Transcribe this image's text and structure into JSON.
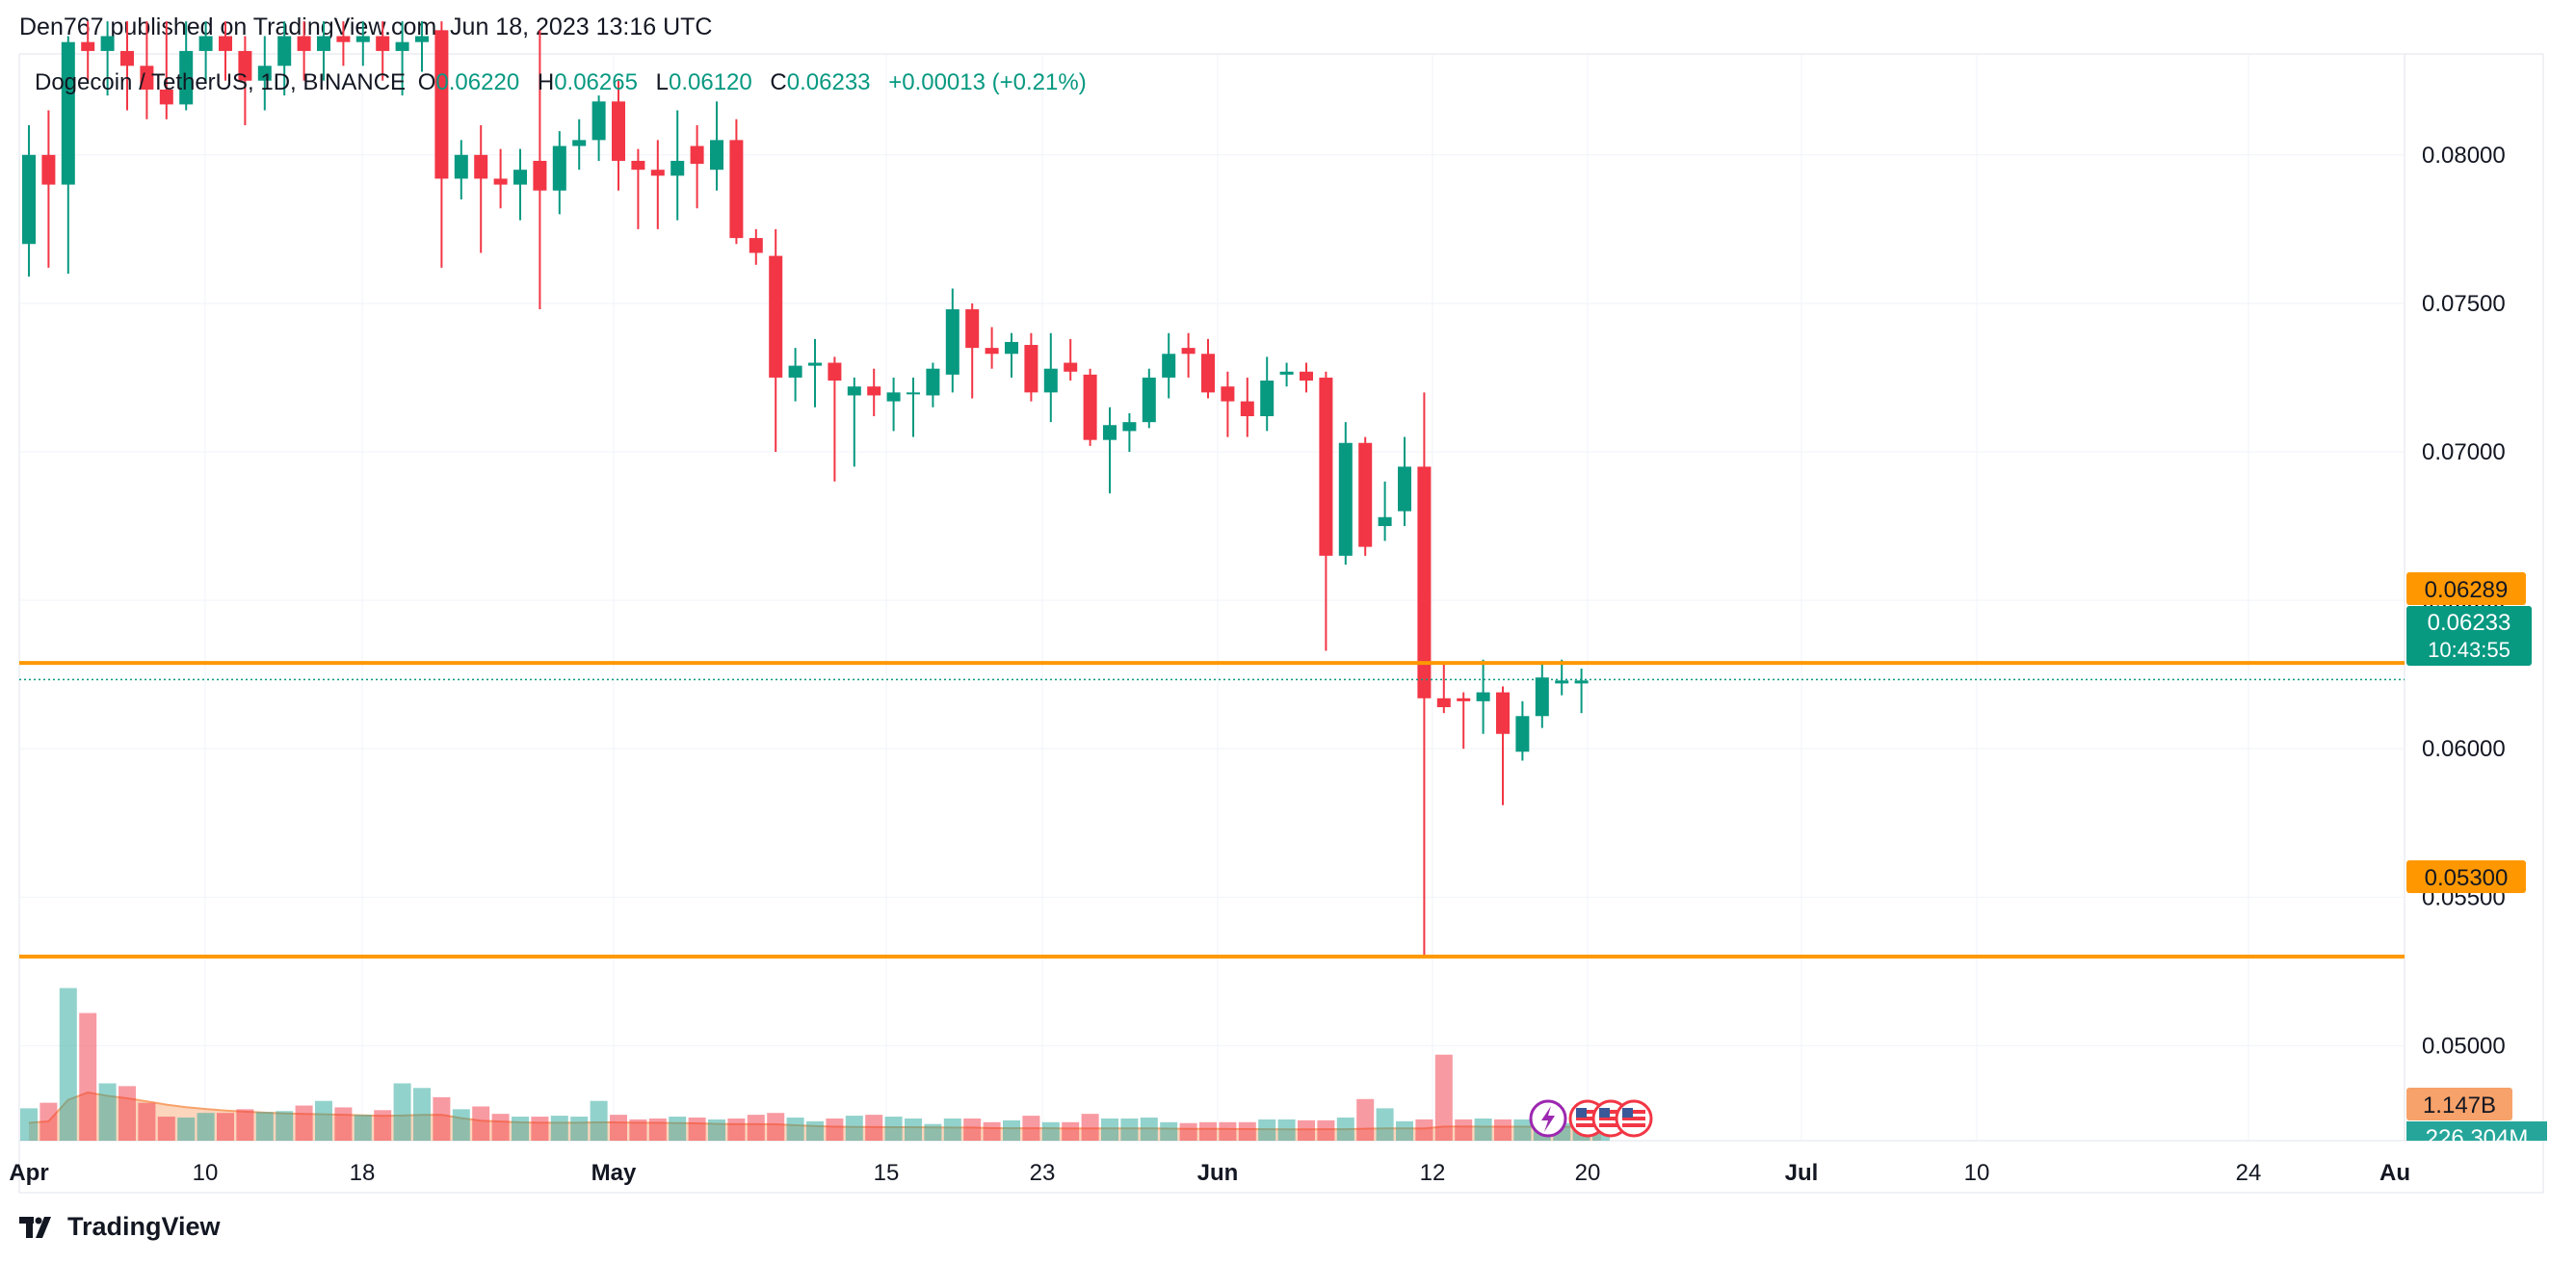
{
  "header": {
    "published": "Den767 published on TradingView.com, Jun 18, 2023 13:16 UTC"
  },
  "footer": {
    "brand": "TradingView"
  },
  "chart_data": {
    "type": "candlestick",
    "symbol_line": {
      "symbol": "Dogecoin / TetherUS, 1D, BINANCE",
      "o_label": "O",
      "o_value": "0.06220",
      "h_label": "H",
      "h_value": "0.06265",
      "l_label": "L",
      "l_value": "0.06120",
      "c_label": "C",
      "c_value": "0.06233",
      "change": "+0.00013 (+0.21%)"
    },
    "price_axis": {
      "ticks": [
        "0.08000",
        "0.07500",
        "0.07000",
        "0.06500",
        "0.06000",
        "0.05500",
        "0.05000"
      ],
      "tick_values": [
        0.08,
        0.075,
        0.07,
        0.065,
        0.06,
        0.055,
        0.05
      ],
      "range": [
        0.0468,
        0.0834
      ]
    },
    "time_axis": {
      "labels": [
        "Apr",
        "10",
        "18",
        "May",
        "15",
        "23",
        "Jun",
        "12",
        "20",
        "Jul",
        "10",
        "24",
        "Au"
      ],
      "bold": [
        "Apr",
        "May",
        "Jun",
        "Jul",
        "Au"
      ]
    },
    "levels": [
      {
        "price": 0.06289,
        "label": "0.06289",
        "color": "#ff9800"
      },
      {
        "price": 0.053,
        "label": "0.05300",
        "color": "#ff9800"
      }
    ],
    "last_price": {
      "price": 0.06233,
      "label": "0.06233",
      "countdown": "10:43:55",
      "color": "#089981"
    },
    "volume_labels": {
      "ma": "1.147B",
      "last": "226.304M",
      "overlay": "1.",
      "ma_color": "#f7a26a",
      "last_color": "#26a69a"
    },
    "up_color": "#089981",
    "down_color": "#f23645",
    "candles": [
      {
        "o": 0.077,
        "h": 0.081,
        "l": 0.0759,
        "c": 0.08
      },
      {
        "o": 0.08,
        "h": 0.0815,
        "l": 0.0762,
        "c": 0.079
      },
      {
        "o": 0.079,
        "h": 0.084,
        "l": 0.076,
        "c": 0.0838
      },
      {
        "o": 0.0838,
        "h": 0.0845,
        "l": 0.0825,
        "c": 0.0835
      },
      {
        "o": 0.0835,
        "h": 0.0845,
        "l": 0.082,
        "c": 0.084
      },
      {
        "o": 0.0835,
        "h": 0.0845,
        "l": 0.0815,
        "c": 0.083
      },
      {
        "o": 0.083,
        "h": 0.0845,
        "l": 0.0812,
        "c": 0.0822
      },
      {
        "o": 0.0822,
        "h": 0.0845,
        "l": 0.0812,
        "c": 0.0817
      },
      {
        "o": 0.0817,
        "h": 0.0845,
        "l": 0.0815,
        "c": 0.0835
      },
      {
        "o": 0.0835,
        "h": 0.0845,
        "l": 0.0825,
        "c": 0.084
      },
      {
        "o": 0.084,
        "h": 0.0845,
        "l": 0.0825,
        "c": 0.0835
      },
      {
        "o": 0.0835,
        "h": 0.084,
        "l": 0.081,
        "c": 0.0825
      },
      {
        "o": 0.0825,
        "h": 0.084,
        "l": 0.0815,
        "c": 0.083
      },
      {
        "o": 0.083,
        "h": 0.0845,
        "l": 0.082,
        "c": 0.084
      },
      {
        "o": 0.084,
        "h": 0.0845,
        "l": 0.0825,
        "c": 0.0835
      },
      {
        "o": 0.0835,
        "h": 0.0845,
        "l": 0.0825,
        "c": 0.084
      },
      {
        "o": 0.084,
        "h": 0.0845,
        "l": 0.083,
        "c": 0.0838
      },
      {
        "o": 0.0838,
        "h": 0.0845,
        "l": 0.083,
        "c": 0.084
      },
      {
        "o": 0.084,
        "h": 0.0845,
        "l": 0.0825,
        "c": 0.0835
      },
      {
        "o": 0.0835,
        "h": 0.0845,
        "l": 0.082,
        "c": 0.0838
      },
      {
        "o": 0.0838,
        "h": 0.0845,
        "l": 0.0828,
        "c": 0.084
      },
      {
        "o": 0.0842,
        "h": 0.0845,
        "l": 0.0762,
        "c": 0.0792
      },
      {
        "o": 0.0792,
        "h": 0.0805,
        "l": 0.0785,
        "c": 0.08
      },
      {
        "o": 0.08,
        "h": 0.081,
        "l": 0.0767,
        "c": 0.0792
      },
      {
        "o": 0.0792,
        "h": 0.0802,
        "l": 0.0782,
        "c": 0.079
      },
      {
        "o": 0.079,
        "h": 0.0802,
        "l": 0.0778,
        "c": 0.0795
      },
      {
        "o": 0.0798,
        "h": 0.0842,
        "l": 0.0748,
        "c": 0.0788
      },
      {
        "o": 0.0788,
        "h": 0.0808,
        "l": 0.078,
        "c": 0.0803
      },
      {
        "o": 0.0803,
        "h": 0.0812,
        "l": 0.0795,
        "c": 0.0805
      },
      {
        "o": 0.0805,
        "h": 0.082,
        "l": 0.0798,
        "c": 0.0818
      },
      {
        "o": 0.0818,
        "h": 0.0825,
        "l": 0.0788,
        "c": 0.0798
      },
      {
        "o": 0.0798,
        "h": 0.0802,
        "l": 0.0775,
        "c": 0.0795
      },
      {
        "o": 0.0795,
        "h": 0.0805,
        "l": 0.0775,
        "c": 0.0793
      },
      {
        "o": 0.0793,
        "h": 0.0815,
        "l": 0.0778,
        "c": 0.0798
      },
      {
        "o": 0.0803,
        "h": 0.081,
        "l": 0.0782,
        "c": 0.0797
      },
      {
        "o": 0.0795,
        "h": 0.0818,
        "l": 0.0788,
        "c": 0.0805
      },
      {
        "o": 0.0805,
        "h": 0.0812,
        "l": 0.077,
        "c": 0.0772
      },
      {
        "o": 0.0772,
        "h": 0.0775,
        "l": 0.0763,
        "c": 0.0767
      },
      {
        "o": 0.0766,
        "h": 0.0775,
        "l": 0.07,
        "c": 0.0725
      },
      {
        "o": 0.0725,
        "h": 0.0735,
        "l": 0.0717,
        "c": 0.0729
      },
      {
        "o": 0.0729,
        "h": 0.0738,
        "l": 0.0715,
        "c": 0.073
      },
      {
        "o": 0.073,
        "h": 0.0732,
        "l": 0.069,
        "c": 0.0724
      },
      {
        "o": 0.0719,
        "h": 0.0725,
        "l": 0.0695,
        "c": 0.0722
      },
      {
        "o": 0.0722,
        "h": 0.0728,
        "l": 0.0712,
        "c": 0.0719
      },
      {
        "o": 0.0717,
        "h": 0.0725,
        "l": 0.0707,
        "c": 0.072
      },
      {
        "o": 0.072,
        "h": 0.0725,
        "l": 0.0705,
        "c": 0.072
      },
      {
        "o": 0.0719,
        "h": 0.073,
        "l": 0.0715,
        "c": 0.0728
      },
      {
        "o": 0.0726,
        "h": 0.0755,
        "l": 0.072,
        "c": 0.0748
      },
      {
        "o": 0.0748,
        "h": 0.075,
        "l": 0.0718,
        "c": 0.0735
      },
      {
        "o": 0.0735,
        "h": 0.0742,
        "l": 0.0728,
        "c": 0.0733
      },
      {
        "o": 0.0733,
        "h": 0.074,
        "l": 0.0725,
        "c": 0.0737
      },
      {
        "o": 0.0736,
        "h": 0.074,
        "l": 0.0717,
        "c": 0.072
      },
      {
        "o": 0.072,
        "h": 0.074,
        "l": 0.071,
        "c": 0.0728
      },
      {
        "o": 0.073,
        "h": 0.0738,
        "l": 0.0724,
        "c": 0.0727
      },
      {
        "o": 0.0726,
        "h": 0.0728,
        "l": 0.0702,
        "c": 0.0704
      },
      {
        "o": 0.0704,
        "h": 0.0715,
        "l": 0.0686,
        "c": 0.0709
      },
      {
        "o": 0.0707,
        "h": 0.0713,
        "l": 0.07,
        "c": 0.071
      },
      {
        "o": 0.071,
        "h": 0.0728,
        "l": 0.0708,
        "c": 0.0725
      },
      {
        "o": 0.0725,
        "h": 0.074,
        "l": 0.0718,
        "c": 0.0733
      },
      {
        "o": 0.0735,
        "h": 0.074,
        "l": 0.0725,
        "c": 0.0733
      },
      {
        "o": 0.0733,
        "h": 0.0738,
        "l": 0.0718,
        "c": 0.072
      },
      {
        "o": 0.0722,
        "h": 0.0727,
        "l": 0.0705,
        "c": 0.0717
      },
      {
        "o": 0.0717,
        "h": 0.0725,
        "l": 0.0705,
        "c": 0.0712
      },
      {
        "o": 0.0712,
        "h": 0.0732,
        "l": 0.0707,
        "c": 0.0724
      },
      {
        "o": 0.0726,
        "h": 0.073,
        "l": 0.0722,
        "c": 0.0727
      },
      {
        "o": 0.0727,
        "h": 0.073,
        "l": 0.072,
        "c": 0.0724
      },
      {
        "o": 0.0725,
        "h": 0.0727,
        "l": 0.0633,
        "c": 0.0665
      },
      {
        "o": 0.0665,
        "h": 0.071,
        "l": 0.0662,
        "c": 0.0703
      },
      {
        "o": 0.0703,
        "h": 0.0705,
        "l": 0.0665,
        "c": 0.0668
      },
      {
        "o": 0.0675,
        "h": 0.069,
        "l": 0.067,
        "c": 0.0678
      },
      {
        "o": 0.068,
        "h": 0.0705,
        "l": 0.0675,
        "c": 0.0695
      },
      {
        "o": 0.0695,
        "h": 0.072,
        "l": 0.053,
        "c": 0.0617
      },
      {
        "o": 0.0617,
        "h": 0.0629,
        "l": 0.0612,
        "c": 0.0614
      },
      {
        "o": 0.0617,
        "h": 0.0619,
        "l": 0.06,
        "c": 0.0616
      },
      {
        "o": 0.0616,
        "h": 0.063,
        "l": 0.0605,
        "c": 0.0619
      },
      {
        "o": 0.0619,
        "h": 0.0621,
        "l": 0.0581,
        "c": 0.0605
      },
      {
        "o": 0.0599,
        "h": 0.0616,
        "l": 0.0596,
        "c": 0.0611
      },
      {
        "o": 0.0611,
        "h": 0.0629,
        "l": 0.0607,
        "c": 0.0624
      },
      {
        "o": 0.0622,
        "h": 0.063,
        "l": 0.0618,
        "c": 0.0623
      },
      {
        "o": 0.0622,
        "h": 0.0627,
        "l": 0.0612,
        "c": 0.0623
      }
    ],
    "volumes_m": [
      350,
      410,
      1650,
      1380,
      620,
      590,
      410,
      260,
      250,
      300,
      300,
      340,
      310,
      320,
      380,
      430,
      360,
      280,
      330,
      620,
      570,
      470,
      340,
      370,
      290,
      260,
      260,
      270,
      260,
      430,
      280,
      230,
      240,
      260,
      250,
      230,
      240,
      280,
      300,
      250,
      210,
      240,
      270,
      280,
      260,
      240,
      180,
      240,
      240,
      200,
      220,
      270,
      200,
      200,
      290,
      240,
      240,
      250,
      200,
      190,
      200,
      200,
      200,
      230,
      230,
      220,
      220,
      250,
      450,
      350,
      210,
      230,
      930,
      230,
      240,
      230,
      230,
      210,
      190,
      180,
      220
    ]
  }
}
